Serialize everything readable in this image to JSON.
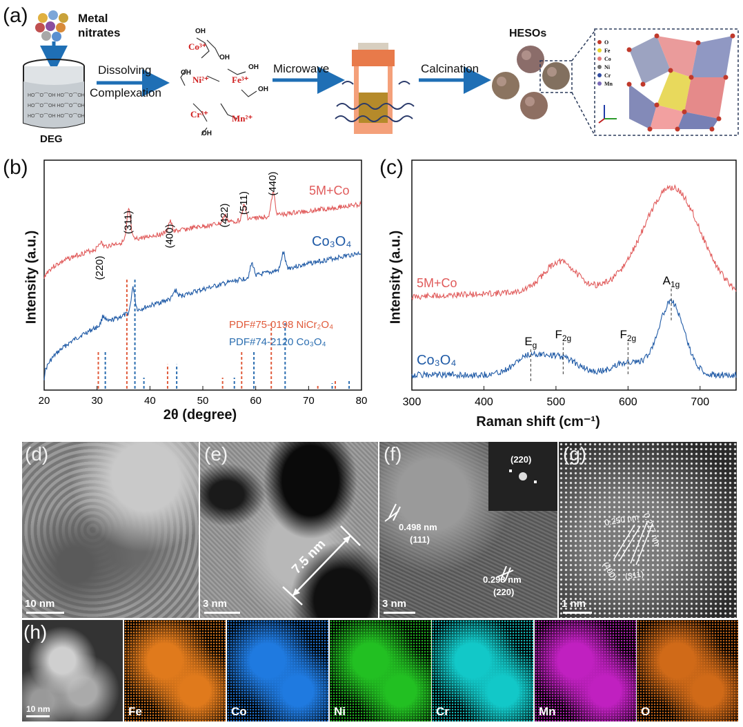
{
  "panel_a": {
    "label": "(a)",
    "precursor": "Metal\nnitrates",
    "solvent": "DEG",
    "step1": "Dissolving",
    "step1b": "Complexation",
    "ions": [
      "Co³⁺",
      "Ni²⁺",
      "Fe³⁺",
      "Cr³⁺",
      "Mn²⁺"
    ],
    "hydroxyl": "OH",
    "step2": "Microwave",
    "step3": "Calcination",
    "product": "HESOs",
    "legend": [
      "O",
      "Fe",
      "Co",
      "Ni",
      "Cr",
      "Mn"
    ],
    "legend_colors": [
      "#c0392b",
      "#e8d62a",
      "#e07878",
      "#6e6e6e",
      "#2f4aa0",
      "#7a6ab8"
    ]
  },
  "chart_data": [
    {
      "id": "b",
      "panel_label": "(b)",
      "type": "line",
      "xlabel": "2θ (degree)",
      "ylabel": "Intensity (a.u.)",
      "xlim": [
        20,
        80
      ],
      "xticks": [
        20,
        30,
        40,
        50,
        60,
        70,
        80
      ],
      "series": [
        {
          "name": "5M+Co",
          "color": "#e05a5a",
          "peaks": [
            [
              30.6,
              0.25
            ],
            [
              36.0,
              1.3
            ],
            [
              43.8,
              0.45
            ],
            [
              54.2,
              0.3
            ],
            [
              57.8,
              0.6
            ],
            [
              63.3,
              0.95
            ]
          ],
          "baseline": [
            0.0,
            1.05
          ]
        },
        {
          "name": "Co₃O₄",
          "color": "#1f5aa6",
          "peaks": [
            [
              31.2,
              0.35
            ],
            [
              36.8,
              1.0
            ],
            [
              44.8,
              0.3
            ],
            [
              59.3,
              0.55
            ],
            [
              65.2,
              0.7
            ]
          ],
          "baseline": [
            0.0,
            1.05
          ]
        }
      ],
      "peak_labels": [
        "(220)",
        "(311)",
        "(400)",
        "(422)",
        "(511)",
        "(440)"
      ],
      "peak_label_x": [
        30.6,
        36.0,
        43.8,
        54.2,
        57.8,
        63.3
      ],
      "reference_labels": [
        "PDF#75-0198 NiCr₂O₄",
        "PDF#74-2120 Co₃O₄"
      ],
      "references": [
        {
          "name": "PDF#75-0198 NiCr2O4",
          "color": "#e05a3a",
          "lines": [
            [
              30.5,
              0.35
            ],
            [
              35.9,
              1.0
            ],
            [
              43.6,
              0.22
            ],
            [
              54.0,
              0.1
            ],
            [
              57.6,
              0.35
            ],
            [
              63.2,
              0.6
            ],
            [
              72.0,
              0.03
            ],
            [
              75.3,
              0.08
            ]
          ]
        },
        {
          "name": "PDF#74-2120 Co3O4",
          "color": "#2a6db0",
          "lines": [
            [
              31.3,
              0.35
            ],
            [
              36.9,
              1.0
            ],
            [
              38.6,
              0.1
            ],
            [
              44.8,
              0.22
            ],
            [
              55.7,
              0.1
            ],
            [
              59.4,
              0.35
            ],
            [
              65.3,
              0.6
            ],
            [
              74.2,
              0.05
            ],
            [
              77.4,
              0.08
            ]
          ]
        }
      ]
    },
    {
      "id": "c",
      "panel_label": "(c)",
      "type": "line",
      "xlabel": "Raman shift (cm⁻¹)",
      "ylabel": "Intensity (a.u.)",
      "xlim": [
        300,
        750
      ],
      "xticks": [
        300,
        400,
        500,
        600,
        700
      ],
      "series": [
        {
          "name": "5M+Co",
          "color": "#e05a5a",
          "peaks": [
            [
              505,
              0.28
            ],
            [
              660,
              0.95
            ]
          ],
          "offset": 0.52
        },
        {
          "name": "Co₃O₄",
          "color": "#1f5aa6",
          "peaks": [
            [
              465,
              0.18
            ],
            [
              510,
              0.15
            ],
            [
              600,
              0.12
            ],
            [
              660,
              0.7
            ]
          ],
          "offset": 0.0
        }
      ],
      "annotations": [
        {
          "label": "E",
          "sub": "g",
          "x": 465
        },
        {
          "label": "F",
          "sub": "2g",
          "x": 510
        },
        {
          "label": "F",
          "sub": "2g",
          "x": 600
        },
        {
          "label": "A",
          "sub": "1g",
          "x": 660
        }
      ]
    }
  ],
  "panel_d": {
    "label": "(d)",
    "scale": "10 nm"
  },
  "panel_e": {
    "label": "(e)",
    "scale": "3 nm",
    "measure": "7.5 nm"
  },
  "panel_f": {
    "label": "(f)",
    "scale": "3 nm",
    "fft_label": "(220)",
    "spacing1": "0.498 nm",
    "plane1": "(111)",
    "spacing2": "0.298 nm",
    "plane2": "(220)"
  },
  "panel_g": {
    "label": "(g)",
    "scale": "1 nm",
    "spacing1": "0.250 nm",
    "spacing2": "0.217 nm",
    "plane1": "(400)",
    "plane2": "(311)"
  },
  "panel_h": {
    "label": "(h)",
    "scale": "10 nm",
    "maps": [
      {
        "element": "Fe",
        "color": "#e07a1c"
      },
      {
        "element": "Co",
        "color": "#1f7ae0"
      },
      {
        "element": "Ni",
        "color": "#22c022"
      },
      {
        "element": "Cr",
        "color": "#12c8c8"
      },
      {
        "element": "Mn",
        "color": "#c020c0"
      },
      {
        "element": "O",
        "color": "#d06a18"
      }
    ]
  }
}
